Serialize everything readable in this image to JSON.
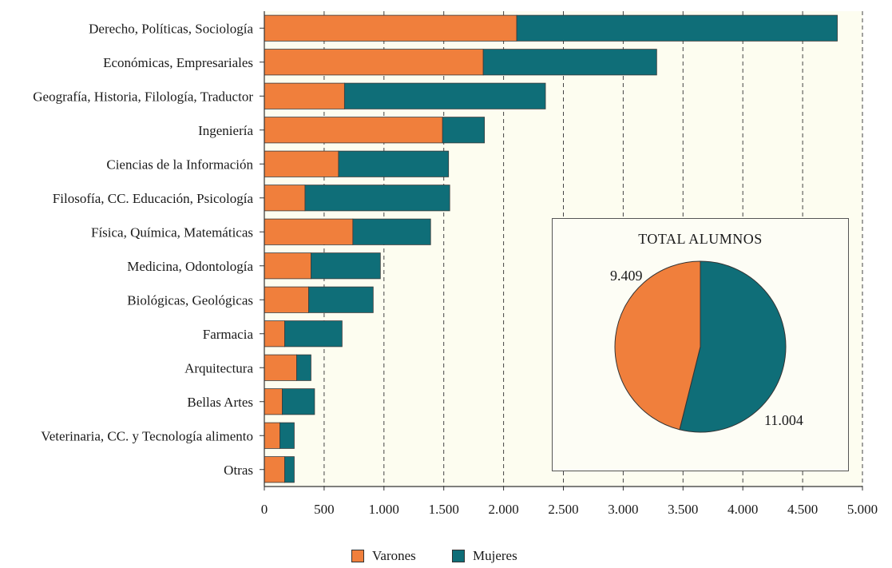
{
  "colors": {
    "varones": "#f07f3c",
    "mujeres": "#0f6e78",
    "plot_bg": "#fdfdf0",
    "grid": "#444444"
  },
  "chart_data": [
    {
      "type": "bar",
      "orientation": "horizontal",
      "stacked": true,
      "categories": [
        "Derecho, Políticas, Sociología",
        "Económicas, Empresariales",
        "Geografía, Historia, Filología, Traductor",
        "Ingeniería",
        "Ciencias de la Información",
        "Filosofía, CC. Educación, Psicología",
        "Física, Química, Matemáticas",
        "Medicina, Odontología",
        "Biológicas, Geológicas",
        "Farmacia",
        "Arquitectura",
        "Bellas Artes",
        "Veterinaria, CC. y Tecnología alimento",
        "Otras"
      ],
      "series": [
        {
          "name": "Varones",
          "values": [
            2110,
            1830,
            670,
            1490,
            620,
            340,
            740,
            390,
            370,
            170,
            270,
            150,
            130,
            170
          ]
        },
        {
          "name": "Mujeres",
          "values": [
            2680,
            1450,
            1680,
            350,
            920,
            1210,
            650,
            580,
            540,
            480,
            120,
            270,
            120,
            80
          ]
        }
      ],
      "xlim": [
        0,
        5000
      ],
      "xticks": [
        "0",
        "500",
        "1.000",
        "1.500",
        "2.000",
        "2.500",
        "3.000",
        "3.500",
        "4.000",
        "4.500",
        "5.000"
      ],
      "grid": "vertical dashed",
      "legend_position": "bottom"
    },
    {
      "type": "pie",
      "title": "TOTAL ALUMNOS",
      "labels": [
        "Varones",
        "Mujeres"
      ],
      "values": [
        9409,
        11004
      ],
      "value_labels": [
        "9.409",
        "11.004"
      ]
    }
  ],
  "legend": [
    {
      "label": "Varones",
      "color_key": "varones"
    },
    {
      "label": "Mujeres",
      "color_key": "mujeres"
    }
  ]
}
